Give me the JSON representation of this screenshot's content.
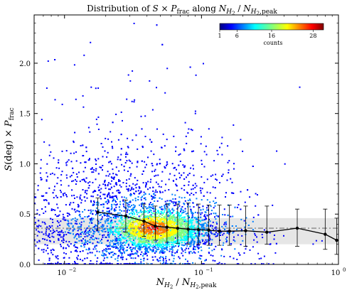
{
  "chart_data": {
    "type": "scatter",
    "title": {
      "prefix": "Distribution of ",
      "S": "S",
      "times": " × ",
      "P": "P",
      "frac": "frac",
      "along": " along ",
      "N": "N",
      "H2_sub": "H",
      "H2_2": "2",
      "slash": " / ",
      "N2": "N",
      "H2peak_sub": "H",
      "H2peak_2": "2",
      "peak": ",peak"
    },
    "xlabel": {
      "N": "N",
      "sub": "H",
      "sub2": "2",
      "slash": " / ",
      "N2": "N",
      "sub_b": "H",
      "sub_b2": "2",
      "peak": ",peak"
    },
    "ylabel": {
      "S": "S",
      "deg": "(deg)",
      "times": " × ",
      "P": "P",
      "frac": "frac"
    },
    "x_scale": "log",
    "xlim": [
      0.006,
      1.0
    ],
    "ylim": [
      0.0,
      2.48
    ],
    "x_ticks": [
      {
        "value": 0.01,
        "label": "10",
        "exp": "−2"
      },
      {
        "value": 0.1,
        "label": "10",
        "exp": "−1"
      },
      {
        "value": 1.0,
        "label": "10",
        "exp": "0"
      }
    ],
    "y_ticks": [
      {
        "value": 0.0,
        "label": "0.0"
      },
      {
        "value": 0.5,
        "label": "0.5"
      },
      {
        "value": 1.0,
        "label": "1.0"
      },
      {
        "value": 1.5,
        "label": "1.5"
      },
      {
        "value": 2.0,
        "label": "2.0"
      }
    ],
    "reference_line": {
      "y": 0.36,
      "band": [
        0.2,
        0.46
      ],
      "style": "dash-dot",
      "color": "#888888"
    },
    "binned_median": {
      "x": [
        0.0175,
        0.028,
        0.038,
        0.046,
        0.056,
        0.067,
        0.08,
        0.095,
        0.113,
        0.135,
        0.16,
        0.21,
        0.3,
        0.5,
        0.8,
        0.97
      ],
      "y": [
        0.52,
        0.48,
        0.43,
        0.38,
        0.37,
        0.36,
        0.35,
        0.345,
        0.34,
        0.33,
        0.33,
        0.335,
        0.32,
        0.36,
        0.3,
        0.24
      ],
      "err_low": [
        0.34,
        0.32,
        0.28,
        0.24,
        0.22,
        0.21,
        0.2,
        0.2,
        0.19,
        0.19,
        0.19,
        0.18,
        0.2,
        0.18,
        0.15,
        0.1
      ],
      "err_high": [
        0.66,
        0.64,
        0.6,
        0.58,
        0.6,
        0.6,
        0.61,
        0.6,
        0.59,
        0.59,
        0.59,
        0.58,
        0.58,
        0.55,
        0.55,
        0.46
      ],
      "color": "#000000"
    },
    "colorbar": {
      "label": "counts",
      "ticks": [
        {
          "value": 1,
          "label": "1"
        },
        {
          "value": 6,
          "label": "6"
        },
        {
          "value": 16,
          "label": "16"
        },
        {
          "value": 28,
          "label": "28"
        }
      ],
      "range": [
        1,
        31
      ],
      "colormap": "jet"
    },
    "point_color_scale": [
      "#00007f",
      "#0000ff",
      "#007fff",
      "#00ffff",
      "#7fff7f",
      "#ffff00",
      "#ff7f00",
      "#ff0000",
      "#7f0000"
    ]
  }
}
